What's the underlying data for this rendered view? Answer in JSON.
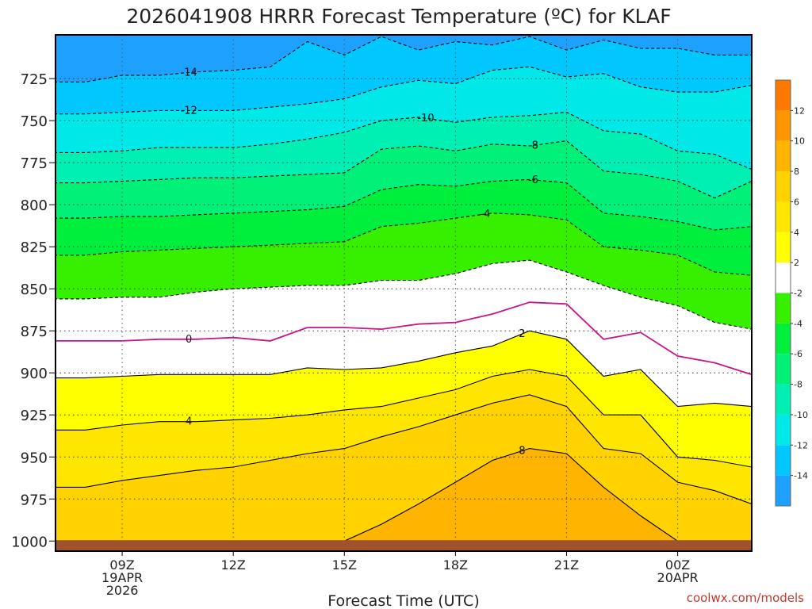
{
  "chart_data": {
    "type": "heatmap",
    "title": "2026041908 HRRR Forecast Temperature (ºC) for KLAF",
    "xlabel": "Forecast Time (UTC)",
    "ylabel": "",
    "credit": "coolwx.com/models",
    "x_forecast_hours": [
      0,
      1,
      2,
      3,
      4,
      5,
      6,
      7,
      8,
      9,
      10,
      11,
      12,
      13,
      14,
      15,
      16,
      17,
      18
    ],
    "xlim_hours": [
      -0.8,
      18.0
    ],
    "x_ticks": [
      {
        "hour": 1,
        "label": "09Z",
        "sub": [
          "19APR",
          "2026"
        ]
      },
      {
        "hour": 4,
        "label": "12Z",
        "sub": []
      },
      {
        "hour": 7,
        "label": "15Z",
        "sub": []
      },
      {
        "hour": 10,
        "label": "18Z",
        "sub": []
      },
      {
        "hour": 13,
        "label": "21Z",
        "sub": []
      },
      {
        "hour": 16,
        "label": "00Z",
        "sub": [
          "20APR"
        ]
      }
    ],
    "y_pressure_ticks": [
      725,
      750,
      775,
      800,
      825,
      850,
      875,
      900,
      925,
      950,
      975,
      1000
    ],
    "ylim_hpa": [
      1006,
      699
    ],
    "surface_pressure_hpa": 999.5,
    "surface_color": "#a0522d",
    "colorbar": {
      "levels": [
        -16,
        -14,
        -12,
        -10,
        -8,
        -6,
        -4,
        -2,
        2,
        4,
        6,
        8,
        10,
        12,
        14
      ],
      "tick_labels": [
        -14,
        -12,
        -10,
        -8,
        -6,
        -4,
        -2,
        2,
        4,
        6,
        8,
        10,
        12
      ],
      "colors": [
        "#1ea0ff",
        "#00c8ff",
        "#00e8e8",
        "#00f0b4",
        "#00f078",
        "#00ee3c",
        "#36f000",
        "#ffffff",
        "#ffff00",
        "#ffe600",
        "#ffd200",
        "#ffb400",
        "#ff9600",
        "#ff7800"
      ]
    },
    "contours": [
      {
        "value": -14,
        "label": "-14",
        "label_hour": 2.8,
        "p": [
          727,
          723,
          723,
          721,
          720,
          718,
          703,
          711,
          700,
          708,
          703,
          705,
          700,
          708,
          702,
          707,
          707,
          711,
          711
        ]
      },
      {
        "value": -12,
        "label": "-12",
        "label_hour": 2.8,
        "p": [
          746,
          745,
          744,
          744,
          744,
          742,
          740,
          737,
          730,
          726,
          728,
          720,
          718,
          724,
          722,
          730,
          733,
          733,
          729
        ]
      },
      {
        "value": -10,
        "label": "-10",
        "label_hour": 9.2,
        "p": [
          769,
          768,
          766,
          766,
          766,
          764,
          761,
          757,
          750,
          748,
          751,
          748,
          747,
          745,
          756,
          758,
          768,
          770,
          779
        ]
      },
      {
        "value": -8,
        "label": "-8",
        "label_hour": 12.1,
        "p": [
          787,
          786,
          785,
          784,
          784,
          783,
          782,
          781,
          767,
          765,
          768,
          764,
          765,
          762,
          780,
          782,
          786,
          796,
          786
        ]
      },
      {
        "value": -6,
        "label": "-6",
        "label_hour": 12.1,
        "p": [
          808,
          807,
          807,
          806,
          805,
          804,
          803,
          801,
          791,
          788,
          789,
          786,
          785,
          787,
          805,
          807,
          810,
          815,
          813
        ]
      },
      {
        "value": -4,
        "label": "-4",
        "label_hour": 10.8,
        "p": [
          830,
          828,
          827,
          826,
          825,
          824,
          823,
          822,
          813,
          811,
          808,
          805,
          806,
          809,
          825,
          827,
          830,
          840,
          842
        ]
      },
      {
        "value": -2,
        "label": "",
        "label_hour": -1,
        "p": [
          856,
          855,
          855,
          852,
          850,
          849,
          848,
          848,
          845,
          845,
          841,
          835,
          833,
          840,
          848,
          855,
          860,
          870,
          874
        ]
      },
      {
        "value": 0,
        "label": "0",
        "label_hour": 2.8,
        "p": [
          881,
          881,
          880,
          880,
          879,
          881,
          873,
          873,
          874,
          871,
          870,
          865,
          858,
          859,
          880,
          876,
          890,
          894,
          901
        ]
      },
      {
        "value": 2,
        "label": "2",
        "label_hour": 11.8,
        "p": [
          903,
          902,
          901,
          901,
          901,
          901,
          897,
          898,
          897,
          893,
          888,
          884,
          875,
          880,
          902,
          898,
          920,
          918,
          920
        ]
      },
      {
        "value": 4,
        "label": "4",
        "label_hour": 2.8,
        "p": [
          934,
          931,
          929,
          929,
          928,
          927,
          925,
          922,
          920,
          915,
          910,
          902,
          898,
          902,
          925,
          925,
          950,
          952,
          956
        ]
      },
      {
        "value": 6,
        "label": "",
        "label_hour": -1,
        "p": [
          968,
          964,
          961,
          958,
          956,
          952,
          948,
          945,
          938,
          932,
          925,
          918,
          913,
          920,
          945,
          948,
          965,
          970,
          978
        ]
      },
      {
        "value": 8,
        "label": "8",
        "label_hour": 11.8,
        "p": [
          1005,
          1005,
          1005,
          1005,
          1005,
          1005,
          1005,
          1000,
          990,
          978,
          965,
          952,
          945,
          948,
          968,
          985,
          1000,
          1005,
          1005
        ]
      }
    ]
  }
}
